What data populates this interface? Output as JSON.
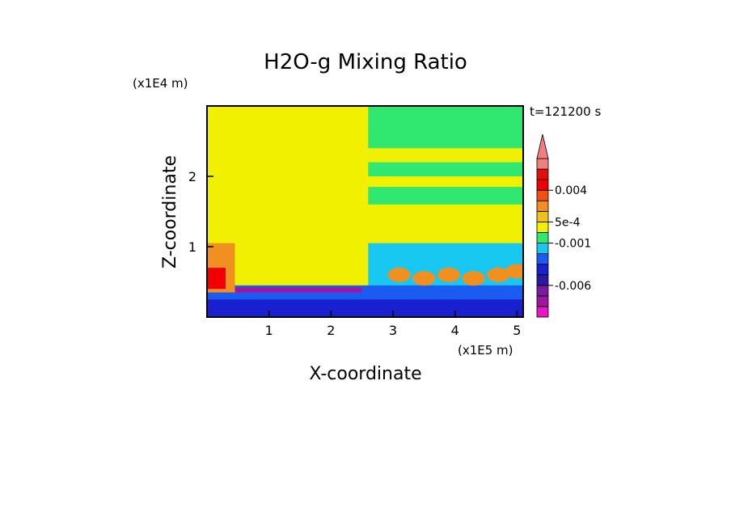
{
  "chart_data": {
    "type": "heatmap",
    "title": "H2O-g Mixing Ratio",
    "xlabel": "X-coordinate",
    "ylabel": "Z-coordinate",
    "x_scale_label": "(x1E5 m)",
    "y_scale_label": "(x1E4 m)",
    "time_label": "t=121200 s",
    "xlim": [
      0,
      5.1
    ],
    "ylim": [
      0,
      3.0
    ],
    "x_ticks": [
      1,
      2,
      3,
      4,
      5
    ],
    "x_tick_labels": [
      "1",
      "2",
      "3",
      "4",
      "5"
    ],
    "y_ticks": [
      1,
      2
    ],
    "y_tick_labels": [
      "1",
      "2"
    ],
    "colorbar": {
      "levels": [
        {
          "color": "#e619c3"
        },
        {
          "color": "#a0169e"
        },
        {
          "color": "#7a1aa0"
        },
        {
          "color": "#2a1aa0"
        },
        {
          "color": "#1820d0"
        },
        {
          "color": "#1a5cf0"
        },
        {
          "color": "#19c8f0"
        },
        {
          "color": "#30e870"
        },
        {
          "color": "#f0f000"
        },
        {
          "color": "#f0c020"
        },
        {
          "color": "#f09020"
        },
        {
          "color": "#f05010"
        },
        {
          "color": "#f00000"
        },
        {
          "color": "#e01010"
        },
        {
          "color": "#f08080"
        }
      ],
      "labels": [
        {
          "text": "0.004",
          "level": 12
        },
        {
          "text": "5e-4",
          "level": 9
        },
        {
          "text": "-0.001",
          "level": 7
        },
        {
          "text": "-0.006",
          "level": 3
        }
      ],
      "extend_top": true
    },
    "regions": [
      {
        "name": "background",
        "color": "#f0f000",
        "x": [
          0,
          5.1
        ],
        "z": [
          0,
          3.0
        ]
      },
      {
        "name": "upper-left-block",
        "color": "#f0f000",
        "x": [
          0,
          2.6
        ],
        "z": [
          0.4,
          3.0
        ]
      },
      {
        "name": "right-green-band-1",
        "color": "#30e870",
        "x": [
          2.6,
          5.1
        ],
        "z": [
          2.4,
          3.0
        ]
      },
      {
        "name": "right-green-band-2",
        "color": "#30e870",
        "x": [
          2.6,
          5.1
        ],
        "z": [
          2.0,
          2.2
        ]
      },
      {
        "name": "right-green-band-3",
        "color": "#30e870",
        "x": [
          2.6,
          5.1
        ],
        "z": [
          1.6,
          1.85
        ]
      },
      {
        "name": "lower-cyan-layer",
        "color": "#19c8f0",
        "x": [
          2.6,
          5.1
        ],
        "z": [
          0.35,
          1.05
        ]
      },
      {
        "name": "lower-blue-layer",
        "color": "#1a5cf0",
        "x": [
          0,
          5.1
        ],
        "z": [
          0.05,
          0.45
        ]
      },
      {
        "name": "lower-dark-blue",
        "color": "#1820d0",
        "x": [
          0,
          5.1
        ],
        "z": [
          0.0,
          0.25
        ]
      },
      {
        "name": "purple-slab",
        "color": "#a0169e",
        "x": [
          0,
          2.5
        ],
        "z": [
          0.35,
          0.42
        ]
      },
      {
        "name": "left-orange-plume",
        "color": "#f09020",
        "x": [
          0,
          0.45
        ],
        "z": [
          0.35,
          1.05
        ]
      },
      {
        "name": "left-red-plume",
        "color": "#f00000",
        "x": [
          0,
          0.3
        ],
        "z": [
          0.4,
          0.7
        ]
      }
    ]
  }
}
